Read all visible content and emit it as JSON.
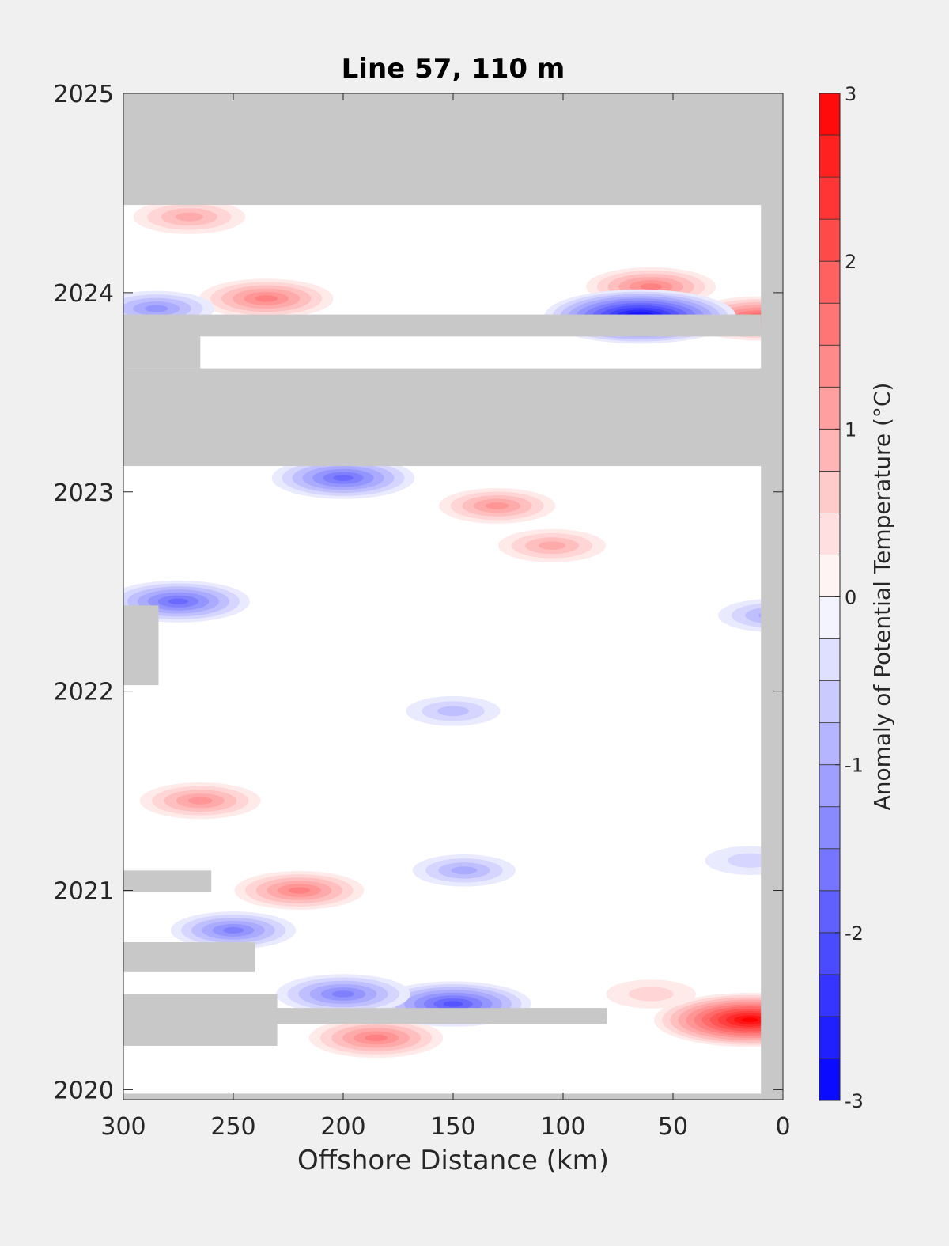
{
  "chart_data": {
    "type": "heatmap",
    "title": "Line 57, 110 m",
    "xlabel": "Offshore Distance (km)",
    "ylabel": "",
    "x_reversed": true,
    "xlim": [
      0,
      300
    ],
    "ylim": [
      2019.95,
      2025
    ],
    "x_ticks": [
      300,
      250,
      200,
      150,
      100,
      50,
      0
    ],
    "y_ticks": [
      2020,
      2021,
      2022,
      2023,
      2024,
      2025
    ],
    "colorbar": {
      "label": "Anomaly of Potential Temperature (°C)",
      "range": [
        -3,
        3
      ],
      "ticks": [
        -3,
        -2,
        -1,
        0,
        1,
        2,
        3
      ],
      "levels": 24,
      "colormap": "blue-white-red",
      "low_color": "#0000ff",
      "mid_color": "#ffffff",
      "high_color": "#ff0000"
    },
    "missing_color": "#c8c8c8",
    "missing_regions": [
      {
        "x": [
          0,
          300
        ],
        "y": [
          2024.44,
          2025
        ]
      },
      {
        "x": [
          0,
          10
        ],
        "y": [
          2019.95,
          2025
        ]
      },
      {
        "x": [
          0,
          300
        ],
        "y": [
          2023.13,
          2023.62
        ]
      },
      {
        "x": [
          10,
          300
        ],
        "y": [
          2023.78,
          2023.89
        ]
      },
      {
        "x": [
          265,
          300
        ],
        "y": [
          2023.62,
          2023.89
        ]
      },
      {
        "x": [
          284,
          300
        ],
        "y": [
          2022.03,
          2022.43
        ]
      },
      {
        "x": [
          260,
          300
        ],
        "y": [
          2020.99,
          2021.1
        ]
      },
      {
        "x": [
          240,
          300
        ],
        "y": [
          2020.59,
          2020.74
        ]
      },
      {
        "x": [
          80,
          300
        ],
        "y": [
          2020.33,
          2020.41
        ]
      },
      {
        "x": [
          230,
          300
        ],
        "y": [
          2020.22,
          2020.48
        ]
      },
      {
        "x": [
          10,
          300
        ],
        "y": [
          2019.95,
          2019.98
        ]
      }
    ],
    "anomaly_features": [
      {
        "x": 15,
        "y": 2020.35,
        "value": 2.9
      },
      {
        "x": 185,
        "y": 2020.26,
        "value": 1.6
      },
      {
        "x": 220,
        "y": 2021.0,
        "value": 1.5
      },
      {
        "x": 265,
        "y": 2021.45,
        "value": 1.3
      },
      {
        "x": 60,
        "y": 2024.03,
        "value": 1.5
      },
      {
        "x": 235,
        "y": 2023.97,
        "value": 1.6
      },
      {
        "x": 270,
        "y": 2024.38,
        "value": 1.1
      },
      {
        "x": 10,
        "y": 2023.87,
        "value": 2.0
      },
      {
        "x": 130,
        "y": 2022.93,
        "value": 1.2
      },
      {
        "x": 105,
        "y": 2022.73,
        "value": 1.0
      },
      {
        "x": 60,
        "y": 2020.48,
        "value": 0.6
      },
      {
        "x": 65,
        "y": 2023.88,
        "value": -2.9
      },
      {
        "x": 150,
        "y": 2020.43,
        "value": -2.1
      },
      {
        "x": 200,
        "y": 2020.48,
        "value": -1.6
      },
      {
        "x": 250,
        "y": 2020.8,
        "value": -1.4
      },
      {
        "x": 275,
        "y": 2022.45,
        "value": -1.8
      },
      {
        "x": 200,
        "y": 2023.07,
        "value": -1.8
      },
      {
        "x": 5,
        "y": 2022.38,
        "value": -1.0
      },
      {
        "x": 145,
        "y": 2021.1,
        "value": -0.9
      },
      {
        "x": 150,
        "y": 2021.9,
        "value": -0.7
      },
      {
        "x": 285,
        "y": 2023.92,
        "value": -1.2
      },
      {
        "x": 15,
        "y": 2021.15,
        "value": -0.6
      }
    ]
  }
}
